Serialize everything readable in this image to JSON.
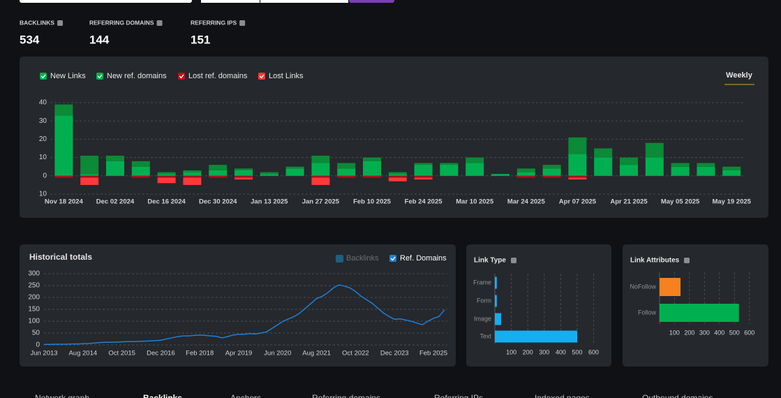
{
  "stats": [
    {
      "label": "BACKLINKS",
      "value": "534"
    },
    {
      "label": "REFERRING DOMAINS",
      "value": "144"
    },
    {
      "label": "REFERRING IPS",
      "value": "151"
    }
  ],
  "period_tab": "Weekly",
  "tabs": [
    "Network graph",
    "Backlinks",
    "Anchors",
    "Referring domains",
    "Referring IPs",
    "Indexed pages",
    "Outbound domains"
  ],
  "active_tab": 1,
  "chart_data": [
    {
      "type": "bar",
      "stacked": true,
      "categories": [
        "Nov 18 2024",
        null,
        "Dec 02 2024",
        null,
        "Dec 16 2024",
        null,
        "Dec 30 2024",
        null,
        "Jan 13 2025",
        null,
        "Jan 27 2025",
        null,
        "Feb 10 2025",
        null,
        "Feb 24 2025",
        null,
        "Mar 10 2025",
        null,
        "Mar 24 2025",
        null,
        "Apr 07 2025",
        null,
        "Apr 21 2025",
        null,
        "May 05 2025",
        null,
        "May 19 2025"
      ],
      "series": [
        {
          "name": "New ref. domains",
          "color": "#00b050",
          "values": [
            33,
            1,
            8,
            5,
            1,
            2,
            3,
            3,
            1,
            4,
            7,
            4,
            8,
            1,
            6,
            6,
            7,
            1,
            2,
            4,
            12,
            10,
            6,
            10,
            5,
            5,
            3
          ]
        },
        {
          "name": "New Links",
          "color": "#0b8a37",
          "values": [
            6,
            10,
            3,
            3,
            1,
            1,
            3,
            1,
            1,
            1,
            4,
            3,
            2,
            1,
            1,
            1,
            3,
            0,
            2,
            2,
            9,
            5,
            4,
            8,
            2,
            2,
            2
          ]
        },
        {
          "name": "Lost ref. domains",
          "color": "#a3121e",
          "values": [
            -1,
            -1,
            0,
            -1,
            -1,
            -1,
            -1,
            -1,
            0,
            0,
            -1,
            -1,
            -1,
            -1,
            -1,
            0,
            0,
            0,
            -1,
            -1,
            -1,
            0,
            0,
            0,
            0,
            0,
            0
          ]
        },
        {
          "name": "Lost Links",
          "color": "#ff3838",
          "values": [
            0,
            -4,
            0,
            0,
            -3,
            -4,
            0,
            -1,
            0,
            0,
            -4,
            0,
            0,
            -2,
            -1,
            0,
            0,
            0,
            0,
            0,
            -1,
            0,
            0,
            0,
            0,
            0,
            0
          ]
        }
      ],
      "legend_order": [
        1,
        0,
        2,
        3
      ],
      "ylim": [
        -10,
        40
      ],
      "yticks": [
        {
          "value": -10,
          "label": "10"
        },
        0,
        10,
        20,
        30,
        40
      ],
      "grid": true
    },
    {
      "type": "line",
      "title": "Historical totals",
      "hidden_series": [
        {
          "name": "Backlinks",
          "color": "#1e5f82"
        }
      ],
      "categories": [
        "Jun 2013",
        null,
        null,
        null,
        null,
        null,
        null,
        "Aug 2014",
        null,
        null,
        null,
        null,
        null,
        null,
        "Oct 2015",
        null,
        null,
        null,
        null,
        null,
        null,
        "Dec 2016",
        null,
        null,
        null,
        null,
        null,
        null,
        "Feb 2018",
        null,
        null,
        null,
        null,
        null,
        null,
        "Apr 2019",
        null,
        null,
        null,
        null,
        null,
        null,
        "Jun 2020",
        null,
        null,
        null,
        null,
        null,
        null,
        "Aug 2021",
        null,
        null,
        null,
        null,
        null,
        null,
        "Oct 2022",
        null,
        null,
        null,
        null,
        null,
        null,
        "Dec 2023",
        null,
        null,
        null,
        null,
        null,
        null,
        "Feb 2025",
        null,
        null
      ],
      "series": [
        {
          "name": "Ref. Domains",
          "color": "#1f7fd6",
          "values": [
            2,
            2,
            3,
            3,
            3,
            4,
            4,
            5,
            6,
            8,
            10,
            11,
            11,
            12,
            13,
            14,
            14,
            15,
            16,
            17,
            18,
            20,
            25,
            30,
            35,
            38,
            38,
            40,
            42,
            40,
            38,
            36,
            30,
            35,
            42,
            45,
            45,
            48,
            46,
            50,
            55,
            70,
            85,
            100,
            110,
            120,
            135,
            155,
            175,
            195,
            205,
            220,
            240,
            253,
            248,
            240,
            225,
            205,
            190,
            175,
            155,
            135,
            120,
            108,
            110,
            105,
            100,
            92,
            85,
            100,
            112,
            120,
            148
          ]
        }
      ],
      "ylim": [
        0,
        300
      ],
      "yticks": [
        0,
        50,
        100,
        150,
        200,
        250,
        300
      ],
      "grid": true
    },
    {
      "type": "hbar",
      "title": "Link Type",
      "categories": [
        "Frame",
        "Form",
        "Image",
        "Text"
      ],
      "values": [
        12,
        12,
        38,
        500
      ],
      "color": "#16aef0",
      "xlim": [
        0,
        640
      ],
      "xticks": [
        100,
        200,
        300,
        400,
        500,
        600
      ],
      "grid": true
    },
    {
      "type": "hbar",
      "title": "Link Attributes",
      "categories": [
        "NoFollow",
        "Follow"
      ],
      "values": [
        140,
        530
      ],
      "colors": [
        "#f5821f",
        "#00b050"
      ],
      "xlim": [
        0,
        620
      ],
      "xticks": [
        100,
        200,
        300,
        400,
        500,
        600
      ],
      "grid": true
    }
  ]
}
